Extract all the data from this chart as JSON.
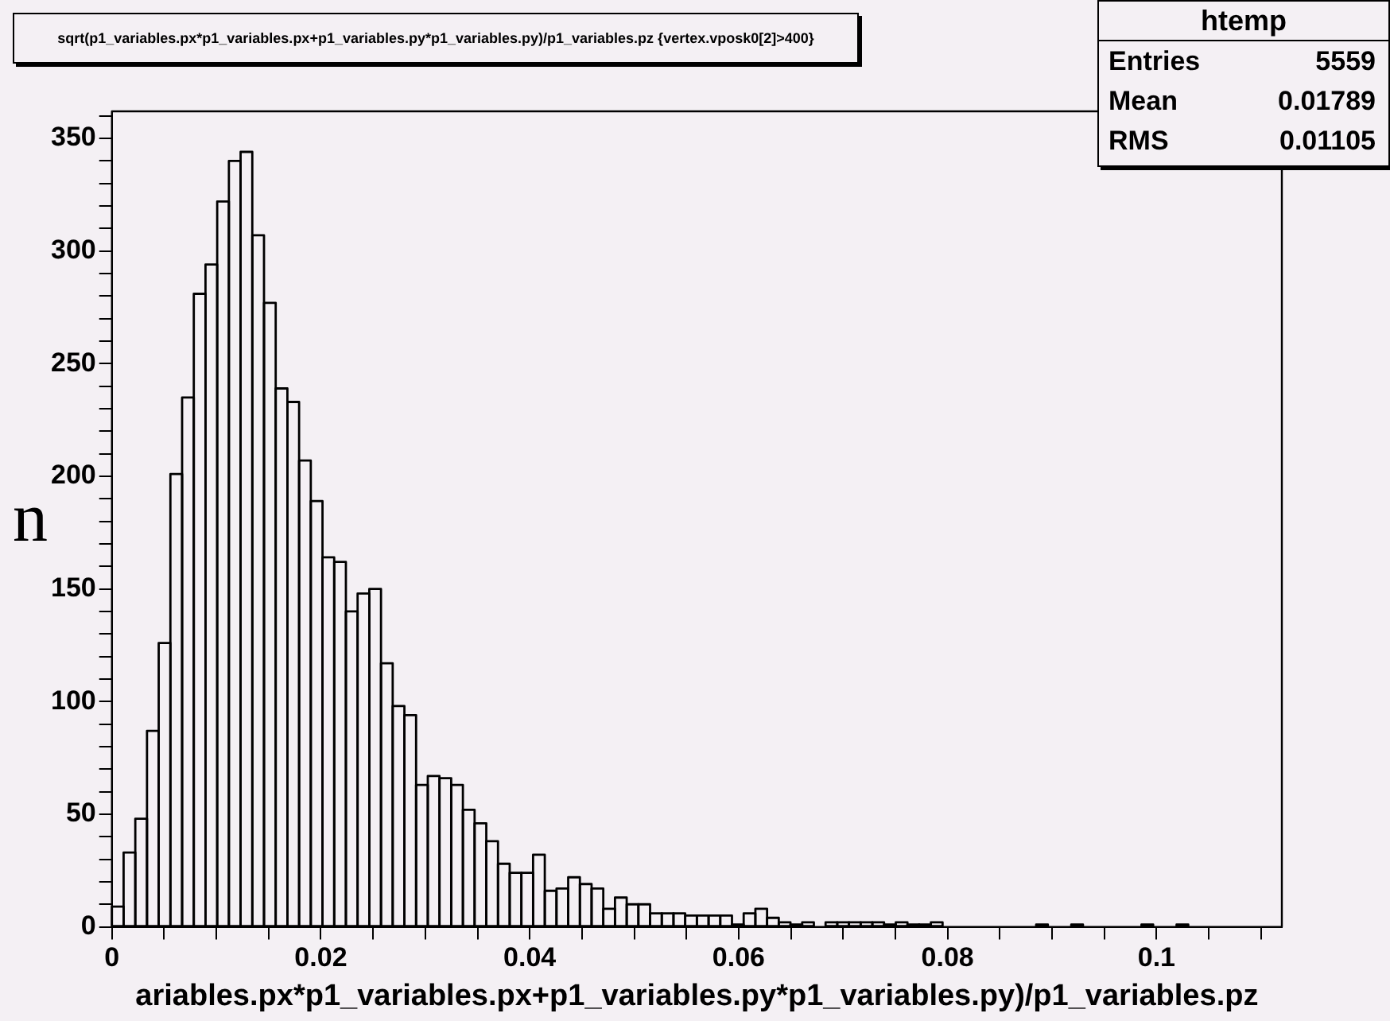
{
  "chart_data": {
    "type": "histogram",
    "title": "sqrt(p1_variables.px*p1_variables.px+p1_variables.py*p1_variables.py)/p1_variables.pz {vertex.vposk0[2]>400}",
    "xlabel": "ariables.px*p1_variables.px+p1_variables.py*p1_variables.py)/p1_variables.pz",
    "color": "#000000",
    "bins": [
      0,
      0.00112,
      0.00224,
      0.00336,
      0.00448,
      0.0056,
      0.00672,
      0.00784,
      0.00896,
      0.01008,
      0.0112,
      0.01232,
      0.01344,
      0.01456,
      0.01568,
      0.0168,
      0.01792,
      0.01904,
      0.02016,
      0.02128,
      0.0224,
      0.02352,
      0.02464,
      0.02576,
      0.02688,
      0.028,
      0.02912,
      0.03024,
      0.03136,
      0.03248,
      0.0336,
      0.03472,
      0.03584,
      0.03696,
      0.03808,
      0.0392,
      0.04032,
      0.04144,
      0.04256,
      0.04368,
      0.0448,
      0.04592,
      0.04704,
      0.04816,
      0.04928,
      0.0504,
      0.05152,
      0.05264,
      0.05376,
      0.05488,
      0.056,
      0.05712,
      0.05824,
      0.05936,
      0.06048,
      0.0616,
      0.06272,
      0.06384,
      0.06496,
      0.06608,
      0.0672,
      0.06832,
      0.06944,
      0.07056,
      0.07168,
      0.0728,
      0.07392,
      0.07504,
      0.07616,
      0.07728,
      0.0784,
      0.07952,
      0.08064,
      0.08176,
      0.08288,
      0.084,
      0.08512,
      0.08624,
      0.08736,
      0.08848,
      0.0896,
      0.09072,
      0.09184,
      0.09296,
      0.09408,
      0.0952,
      0.09632,
      0.09744,
      0.09856,
      0.09968,
      0.1008,
      0.10192,
      0.10304,
      0.10416,
      0.10528,
      0.1064,
      0.10752,
      0.10864,
      0.10976,
      0.11088,
      0.112
    ],
    "values": [
      9,
      33,
      48,
      87,
      126,
      201,
      235,
      281,
      294,
      322,
      340,
      344,
      307,
      277,
      239,
      233,
      207,
      189,
      164,
      162,
      140,
      148,
      150,
      117,
      98,
      94,
      63,
      67,
      66,
      63,
      52,
      46,
      38,
      28,
      24,
      24,
      32,
      16,
      17,
      22,
      19,
      17,
      8,
      13,
      10,
      10,
      6,
      6,
      6,
      5,
      5,
      5,
      5,
      1,
      6,
      8,
      4,
      2,
      1,
      2,
      0,
      2,
      2,
      2,
      2,
      2,
      1,
      2,
      1,
      1,
      2,
      0,
      0,
      0,
      0,
      0,
      0,
      0,
      0,
      1,
      0,
      0,
      1,
      0,
      0,
      0,
      0,
      0,
      1,
      0,
      0,
      1,
      0,
      0,
      0,
      0,
      0,
      0,
      0,
      0
    ],
    "xlim": [
      0,
      0.112
    ],
    "xticks": [
      0,
      {
        "value": 0.005,
        "label": null
      },
      {
        "value": 0.01,
        "label": null
      },
      {
        "value": 0.015,
        "label": null
      },
      0.02,
      {
        "value": 0.025,
        "label": null
      },
      {
        "value": 0.03,
        "label": null
      },
      {
        "value": 0.035,
        "label": null
      },
      0.04,
      {
        "value": 0.045,
        "label": null
      },
      {
        "value": 0.05,
        "label": null
      },
      {
        "value": 0.055,
        "label": null
      },
      0.06,
      {
        "value": 0.065,
        "label": null
      },
      {
        "value": 0.07,
        "label": null
      },
      {
        "value": 0.075,
        "label": null
      },
      0.08,
      {
        "value": 0.085,
        "label": null
      },
      {
        "value": 0.09,
        "label": null
      },
      {
        "value": 0.095,
        "label": null
      },
      0.1,
      {
        "value": 0.105,
        "label": null
      },
      {
        "value": 0.11,
        "label": null
      }
    ],
    "ylim": [
      0,
      362
    ],
    "yticks": [
      0,
      {
        "value": 10,
        "label": null
      },
      {
        "value": 20,
        "label": null
      },
      {
        "value": 30,
        "label": null
      },
      {
        "value": 40,
        "label": null
      },
      50,
      {
        "value": 60,
        "label": null
      },
      {
        "value": 70,
        "label": null
      },
      {
        "value": 80,
        "label": null
      },
      {
        "value": 90,
        "label": null
      },
      100,
      {
        "value": 110,
        "label": null
      },
      {
        "value": 120,
        "label": null
      },
      {
        "value": 130,
        "label": null
      },
      {
        "value": 140,
        "label": null
      },
      150,
      {
        "value": 160,
        "label": null
      },
      {
        "value": 170,
        "label": null
      },
      {
        "value": 180,
        "label": null
      },
      {
        "value": 190,
        "label": null
      },
      200,
      {
        "value": 210,
        "label": null
      },
      {
        "value": 220,
        "label": null
      },
      {
        "value": 230,
        "label": null
      },
      {
        "value": 240,
        "label": null
      },
      250,
      {
        "value": 260,
        "label": null
      },
      {
        "value": 270,
        "label": null
      },
      {
        "value": 280,
        "label": null
      },
      {
        "value": 290,
        "label": null
      },
      300,
      {
        "value": 310,
        "label": null
      },
      {
        "value": 320,
        "label": null
      },
      {
        "value": 330,
        "label": null
      },
      {
        "value": 340,
        "label": null
      },
      350,
      {
        "value": 360,
        "label": null
      }
    ],
    "annotations": [
      "htemp",
      "Entries",
      "5559",
      "Mean",
      "0.01789",
      "RMS",
      "0.01105",
      "n"
    ]
  }
}
